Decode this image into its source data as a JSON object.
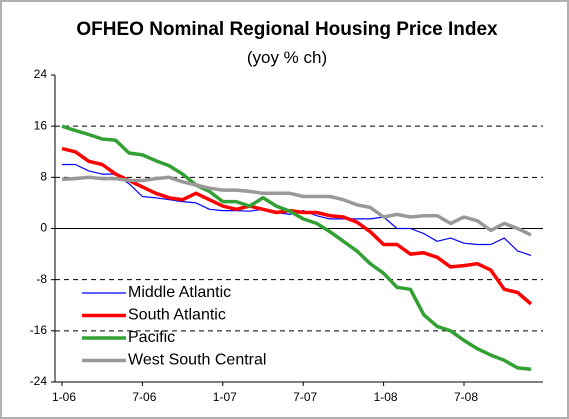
{
  "chart_data": {
    "type": "line",
    "title": "OFHEO Nominal Regional Housing Price Index",
    "subtitle": "(yoy % ch)",
    "categories": [
      "1-06",
      null,
      null,
      null,
      null,
      null,
      "7-06",
      null,
      null,
      null,
      null,
      null,
      "1-07",
      null,
      null,
      null,
      null,
      null,
      "7-07",
      null,
      null,
      null,
      null,
      null,
      "1-08",
      null,
      null,
      null,
      null,
      null,
      "7-08",
      null,
      null,
      null,
      null,
      null
    ],
    "ylim": [
      -24,
      24
    ],
    "yticks": [
      -24,
      -16,
      -8,
      0,
      8,
      16,
      24
    ],
    "grid": true,
    "legend": "lower-left",
    "series": [
      {
        "name": "Middle Atlantic",
        "color": "#0000ff",
        "values": [
          10,
          10,
          9,
          8.5,
          8.5,
          7,
          5,
          4.8,
          4.5,
          4.2,
          4,
          3,
          2.8,
          2.8,
          2.7,
          3,
          2.5,
          2.2,
          2.8,
          2,
          1.5,
          1.5,
          1.5,
          1.5,
          1.8,
          0,
          0,
          -0.8,
          -2,
          -1.5,
          -2.3,
          -2.5,
          -2.5,
          -1.5,
          -3.5,
          -4.2
        ]
      },
      {
        "name": "South Atlantic",
        "color": "#ff0000",
        "values": [
          12.5,
          12,
          10.5,
          10,
          8.5,
          7.5,
          6.5,
          5.5,
          4.8,
          4.5,
          5.5,
          4.5,
          3.5,
          3,
          3.5,
          3,
          2.5,
          2.8,
          2.5,
          2.5,
          2,
          1.8,
          1,
          -0.5,
          -2.5,
          -2.5,
          -4,
          -3.8,
          -4.5,
          -6,
          -5.8,
          -5.5,
          -6.5,
          -9.5,
          -10,
          -11.8
        ]
      },
      {
        "name": "Pacific",
        "color": "#33a033",
        "values": [
          16,
          15.3,
          14.7,
          14,
          13.8,
          11.8,
          11.5,
          10.6,
          9.8,
          8.5,
          6.8,
          5.8,
          4.2,
          4.2,
          3.5,
          4.8,
          3.5,
          2.7,
          1.5,
          0.8,
          -0.5,
          -2,
          -3.5,
          -5.5,
          -7,
          -9.2,
          -9.5,
          -13.5,
          -15.3,
          -16,
          -17.5,
          -18.8,
          -19.8,
          -20.6,
          -21.8,
          -22
        ]
      },
      {
        "name": "West South Central",
        "color": "#999999",
        "values": [
          7.7,
          7.8,
          8,
          7.8,
          7.8,
          7.5,
          7.5,
          7.8,
          8,
          7.3,
          6.8,
          6.3,
          6,
          6,
          5.8,
          5.5,
          5.5,
          5.5,
          5,
          5,
          5,
          4.5,
          3.7,
          3.3,
          1.8,
          2.2,
          1.8,
          2,
          2,
          0.8,
          1.8,
          1.2,
          -0.3,
          0.8,
          0,
          -1
        ]
      }
    ]
  }
}
